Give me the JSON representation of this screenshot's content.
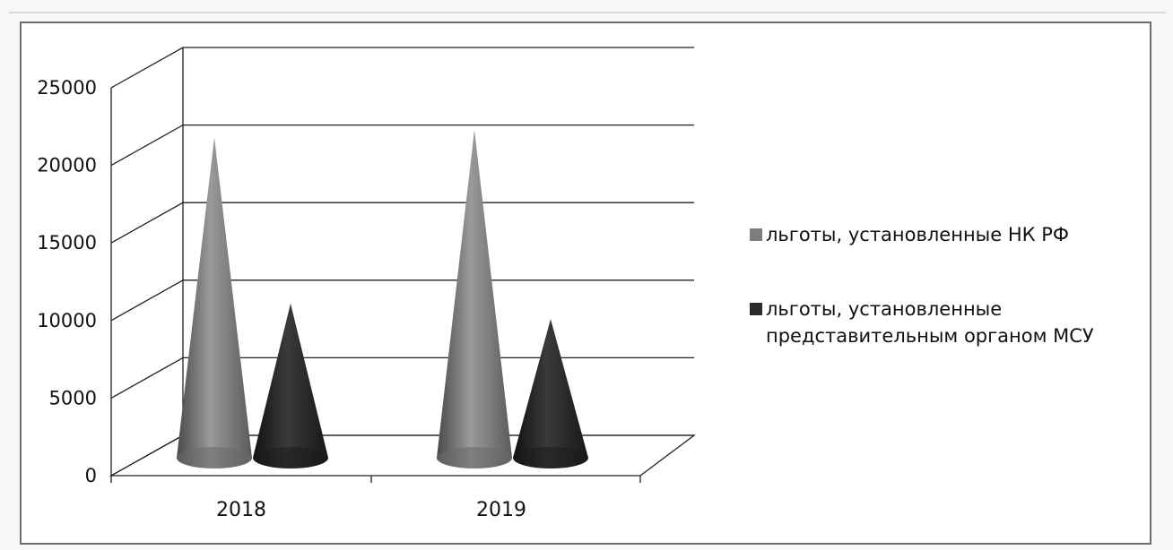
{
  "chart_data": {
    "type": "bar",
    "style": "3d-cone",
    "categories": [
      "2018",
      "2019"
    ],
    "series": [
      {
        "name": "льготы, установленные НК РФ",
        "values": [
          20500,
          21000
        ],
        "color": "#7d7d7d"
      },
      {
        "name": "льготы, установленные представительным органом МСУ",
        "values": [
          9800,
          8800
        ],
        "color": "#2b2b2b"
      }
    ],
    "ylim": [
      0,
      25000
    ],
    "yticks": [
      "0",
      "5000",
      "10000",
      "15000",
      "20000",
      "25000"
    ],
    "grid": true,
    "legend_position": "right",
    "title": "",
    "xlabel": "",
    "ylabel": ""
  },
  "legend": {
    "line1": "льготы, установленные НК РФ",
    "line2a": "льготы, установленные",
    "line2b": "представительным органом МСУ"
  }
}
